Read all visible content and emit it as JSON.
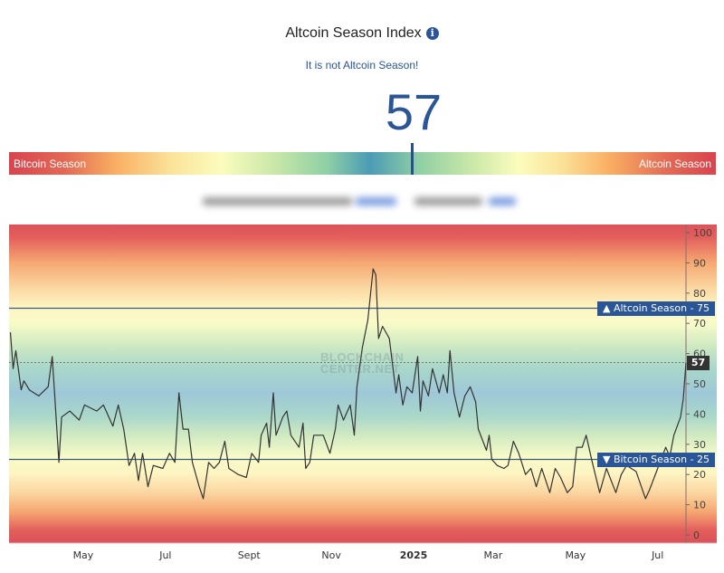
{
  "header": {
    "title": "Altcoin Season Index",
    "info_icon": "info-icon",
    "status": "It is not Altcoin Season!",
    "value": "57"
  },
  "gauge": {
    "left_label": "Bitcoin Season",
    "right_label": "Altcoin Season",
    "value_percent": 57
  },
  "watermark": "BLOCKCHAIN CENTER.NET",
  "colors": {
    "accent": "#2a5597",
    "line": "#333333"
  },
  "chart_data": {
    "type": "line",
    "ylim": [
      0,
      100
    ],
    "yticks": [
      0,
      10,
      20,
      30,
      40,
      50,
      60,
      70,
      80,
      90,
      100
    ],
    "xlim": [
      "2024-03-07",
      "2025-07-22"
    ],
    "xticks": [
      {
        "date": "2024-05-01",
        "label": "May"
      },
      {
        "date": "2024-07-01",
        "label": "Jul"
      },
      {
        "date": "2024-09-01",
        "label": "Sept"
      },
      {
        "date": "2024-11-01",
        "label": "Nov"
      },
      {
        "date": "2025-01-01",
        "label": "2025"
      },
      {
        "date": "2025-03-01",
        "label": "Mar"
      },
      {
        "date": "2025-05-01",
        "label": "May"
      },
      {
        "date": "2025-07-01",
        "label": "Jul"
      }
    ],
    "thresholds": [
      {
        "label": "▲ Altcoin Season - 75",
        "value": 75
      },
      {
        "label": "▼ Bitcoin Season - 25",
        "value": 25
      }
    ],
    "current": {
      "label": "57",
      "value": 57
    },
    "grid": false,
    "points": [
      [
        "2024-03-08",
        67
      ],
      [
        "2024-03-10",
        55
      ],
      [
        "2024-03-12",
        61
      ],
      [
        "2024-03-16",
        48
      ],
      [
        "2024-03-18",
        51
      ],
      [
        "2024-03-22",
        48
      ],
      [
        "2024-03-29",
        46
      ],
      [
        "2024-04-05",
        49
      ],
      [
        "2024-04-08",
        59
      ],
      [
        "2024-04-10",
        45
      ],
      [
        "2024-04-13",
        24
      ],
      [
        "2024-04-15",
        39
      ],
      [
        "2024-04-21",
        41
      ],
      [
        "2024-04-28",
        38
      ],
      [
        "2024-05-02",
        43
      ],
      [
        "2024-05-11",
        41
      ],
      [
        "2024-05-16",
        43
      ],
      [
        "2024-05-23",
        36
      ],
      [
        "2024-05-27",
        43
      ],
      [
        "2024-05-31",
        35
      ],
      [
        "2024-06-04",
        23
      ],
      [
        "2024-06-08",
        27
      ],
      [
        "2024-06-11",
        18
      ],
      [
        "2024-06-14",
        27
      ],
      [
        "2024-06-18",
        16
      ],
      [
        "2024-06-22",
        23
      ],
      [
        "2024-06-29",
        22
      ],
      [
        "2024-07-04",
        27
      ],
      [
        "2024-07-08",
        24
      ],
      [
        "2024-07-11",
        47
      ],
      [
        "2024-07-14",
        35
      ],
      [
        "2024-07-18",
        35
      ],
      [
        "2024-07-21",
        24
      ],
      [
        "2024-07-26",
        16
      ],
      [
        "2024-07-29",
        12
      ],
      [
        "2024-08-02",
        24
      ],
      [
        "2024-08-06",
        22
      ],
      [
        "2024-08-10",
        24
      ],
      [
        "2024-08-14",
        31
      ],
      [
        "2024-08-17",
        22
      ],
      [
        "2024-08-24",
        20
      ],
      [
        "2024-08-30",
        19
      ],
      [
        "2024-09-03",
        27
      ],
      [
        "2024-09-08",
        24
      ],
      [
        "2024-09-10",
        33
      ],
      [
        "2024-09-14",
        37
      ],
      [
        "2024-09-16",
        29
      ],
      [
        "2024-09-19",
        47
      ],
      [
        "2024-09-21",
        33
      ],
      [
        "2024-09-26",
        39
      ],
      [
        "2024-09-29",
        41
      ],
      [
        "2024-10-02",
        33
      ],
      [
        "2024-10-08",
        29
      ],
      [
        "2024-10-11",
        37
      ],
      [
        "2024-10-13",
        22
      ],
      [
        "2024-10-16",
        24
      ],
      [
        "2024-10-19",
        33
      ],
      [
        "2024-10-26",
        33
      ],
      [
        "2024-10-31",
        27
      ],
      [
        "2024-11-04",
        35
      ],
      [
        "2024-11-06",
        43
      ],
      [
        "2024-11-10",
        38
      ],
      [
        "2024-11-15",
        43
      ],
      [
        "2024-11-18",
        33
      ],
      [
        "2024-11-20",
        49
      ],
      [
        "2024-11-24",
        62
      ],
      [
        "2024-11-28",
        71
      ],
      [
        "2024-12-02",
        88
      ],
      [
        "2024-12-04",
        86
      ],
      [
        "2024-12-06",
        65
      ],
      [
        "2024-12-09",
        69
      ],
      [
        "2024-12-14",
        65
      ],
      [
        "2024-12-19",
        47
      ],
      [
        "2024-12-21",
        53
      ],
      [
        "2024-12-24",
        43
      ],
      [
        "2024-12-27",
        49
      ],
      [
        "2024-12-31",
        47
      ],
      [
        "2025-01-04",
        59
      ],
      [
        "2025-01-06",
        41
      ],
      [
        "2025-01-08",
        51
      ],
      [
        "2025-01-12",
        46
      ],
      [
        "2025-01-15",
        55
      ],
      [
        "2025-01-20",
        47
      ],
      [
        "2025-01-23",
        53
      ],
      [
        "2025-01-26",
        47
      ],
      [
        "2025-01-28",
        61
      ],
      [
        "2025-01-31",
        47
      ],
      [
        "2025-02-04",
        39
      ],
      [
        "2025-02-08",
        46
      ],
      [
        "2025-02-12",
        49
      ],
      [
        "2025-02-16",
        44
      ],
      [
        "2025-02-18",
        35
      ],
      [
        "2025-02-24",
        28
      ],
      [
        "2025-02-26",
        33
      ],
      [
        "2025-02-28",
        25
      ],
      [
        "2025-03-04",
        23
      ],
      [
        "2025-03-09",
        22
      ],
      [
        "2025-03-12",
        23
      ],
      [
        "2025-03-16",
        31
      ],
      [
        "2025-03-20",
        27
      ],
      [
        "2025-03-25",
        20
      ],
      [
        "2025-03-29",
        22
      ],
      [
        "2025-04-02",
        16
      ],
      [
        "2025-04-06",
        22
      ],
      [
        "2025-04-12",
        14
      ],
      [
        "2025-04-16",
        22
      ],
      [
        "2025-04-20",
        19
      ],
      [
        "2025-04-25",
        14
      ],
      [
        "2025-04-29",
        16
      ],
      [
        "2025-05-02",
        29
      ],
      [
        "2025-05-06",
        29
      ],
      [
        "2025-05-09",
        33
      ],
      [
        "2025-05-13",
        25
      ],
      [
        "2025-05-19",
        14
      ],
      [
        "2025-05-24",
        22
      ],
      [
        "2025-05-31",
        14
      ],
      [
        "2025-06-04",
        20
      ],
      [
        "2025-06-08",
        23
      ],
      [
        "2025-06-15",
        21
      ],
      [
        "2025-06-22",
        12
      ],
      [
        "2025-06-25",
        15
      ],
      [
        "2025-07-01",
        22
      ],
      [
        "2025-07-07",
        29
      ],
      [
        "2025-07-10",
        26
      ],
      [
        "2025-07-13",
        33
      ],
      [
        "2025-07-18",
        39
      ],
      [
        "2025-07-20",
        45
      ],
      [
        "2025-07-22",
        57
      ]
    ]
  }
}
